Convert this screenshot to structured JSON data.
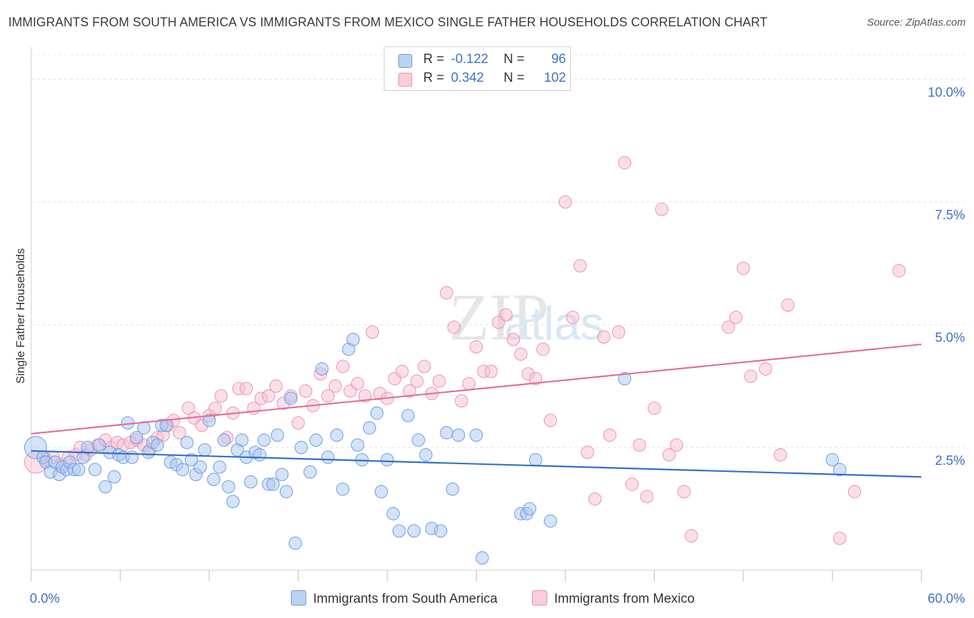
{
  "header": {
    "title": "IMMIGRANTS FROM SOUTH AMERICA VS IMMIGRANTS FROM MEXICO SINGLE FATHER HOUSEHOLDS CORRELATION CHART",
    "source": "Source: ZipAtlas.com"
  },
  "legend": {
    "r_label": "R =",
    "n_label": "N =",
    "rows": [
      {
        "r": "-0.122",
        "n": "96"
      },
      {
        "r": "0.342",
        "n": "102"
      }
    ]
  },
  "bottom_legend": [
    "Immigrants from South America",
    "Immigrants from Mexico"
  ],
  "colors": {
    "blue_fill": "#a9c8f0",
    "blue_stroke": "#6a9be0",
    "blue_line": "#2f6ec9",
    "pink_fill": "#f7c0d1",
    "pink_stroke": "#eb8fae",
    "pink_line": "#e46b96",
    "tick_label": "#3b72c4"
  },
  "chart_data": {
    "type": "scatter",
    "title": "IMMIGRANTS FROM SOUTH AMERICA VS IMMIGRANTS FROM MEXICO SINGLE FATHER HOUSEHOLDS CORRELATION CHART",
    "xlabel": "",
    "ylabel": "Single Father Households",
    "xlim": [
      0,
      60
    ],
    "ylim": [
      0,
      10.5
    ],
    "x_tick_labels": [
      "0.0%",
      "60.0%"
    ],
    "y_ticks": [
      2.5,
      5.0,
      7.5,
      10.0
    ],
    "y_tick_labels": [
      "2.5%",
      "5.0%",
      "7.5%",
      "10.0%"
    ],
    "watermark": "ZIPatlas",
    "series": [
      {
        "name": "Immigrants from South America",
        "color": "blue",
        "r": -0.122,
        "n": 96,
        "trend": [
          [
            0,
            2.43
          ],
          [
            60,
            1.9
          ]
        ],
        "points": [
          [
            0.3,
            2.5,
            16
          ],
          [
            0.8,
            2.3,
            9
          ],
          [
            1.0,
            2.2,
            9
          ],
          [
            1.3,
            2.0,
            9
          ],
          [
            1.6,
            2.2,
            9
          ],
          [
            1.9,
            1.95,
            9
          ],
          [
            2.1,
            2.1,
            9
          ],
          [
            2.4,
            2.05,
            9
          ],
          [
            2.6,
            2.2,
            9
          ],
          [
            2.9,
            2.05,
            9
          ],
          [
            3.2,
            2.05,
            9
          ],
          [
            3.5,
            2.3,
            9
          ],
          [
            3.8,
            2.5,
            9
          ],
          [
            4.3,
            2.05,
            9
          ],
          [
            4.6,
            2.55,
            9
          ],
          [
            5.0,
            1.7,
            9
          ],
          [
            5.3,
            2.4,
            9
          ],
          [
            5.6,
            1.9,
            9
          ],
          [
            5.9,
            2.35,
            9
          ],
          [
            6.2,
            2.3,
            9
          ],
          [
            6.5,
            3.0,
            9
          ],
          [
            6.8,
            2.3,
            9
          ],
          [
            7.1,
            2.7,
            9
          ],
          [
            7.6,
            2.9,
            9
          ],
          [
            7.9,
            2.4,
            9
          ],
          [
            8.2,
            2.6,
            9
          ],
          [
            8.5,
            2.55,
            9
          ],
          [
            8.8,
            2.95,
            9
          ],
          [
            9.1,
            2.95,
            9
          ],
          [
            9.4,
            2.2,
            9
          ],
          [
            9.8,
            2.15,
            9
          ],
          [
            10.2,
            2.05,
            9
          ],
          [
            10.5,
            2.6,
            9
          ],
          [
            10.8,
            2.25,
            9
          ],
          [
            11.1,
            1.95,
            9
          ],
          [
            11.4,
            2.1,
            9
          ],
          [
            11.7,
            2.45,
            9
          ],
          [
            12.0,
            3.05,
            9
          ],
          [
            12.3,
            1.85,
            9
          ],
          [
            12.7,
            2.1,
            9
          ],
          [
            13.0,
            2.65,
            9
          ],
          [
            13.3,
            1.7,
            9
          ],
          [
            13.6,
            1.4,
            9
          ],
          [
            13.9,
            2.45,
            9
          ],
          [
            14.2,
            2.65,
            9
          ],
          [
            14.5,
            2.3,
            9
          ],
          [
            14.8,
            1.8,
            9
          ],
          [
            15.1,
            2.4,
            9
          ],
          [
            15.4,
            2.35,
            9
          ],
          [
            15.7,
            2.65,
            9
          ],
          [
            16.0,
            1.75,
            9
          ],
          [
            16.3,
            1.75,
            9
          ],
          [
            16.6,
            2.75,
            9
          ],
          [
            16.9,
            1.95,
            9
          ],
          [
            17.2,
            1.6,
            9
          ],
          [
            17.5,
            3.5,
            9
          ],
          [
            17.8,
            0.55,
            9
          ],
          [
            18.2,
            2.5,
            9
          ],
          [
            18.8,
            2.0,
            9
          ],
          [
            19.2,
            2.65,
            9
          ],
          [
            19.6,
            4.1,
            9
          ],
          [
            20.0,
            2.3,
            9
          ],
          [
            20.6,
            2.75,
            9
          ],
          [
            21.0,
            1.65,
            9
          ],
          [
            21.4,
            4.5,
            9
          ],
          [
            21.7,
            4.7,
            9
          ],
          [
            22.0,
            2.55,
            9
          ],
          [
            22.3,
            2.25,
            9
          ],
          [
            22.8,
            2.9,
            9
          ],
          [
            23.3,
            3.2,
            9
          ],
          [
            23.6,
            1.6,
            9
          ],
          [
            24.0,
            2.25,
            9
          ],
          [
            24.4,
            1.15,
            9
          ],
          [
            24.8,
            0.8,
            9
          ],
          [
            25.4,
            3.15,
            9
          ],
          [
            25.8,
            0.8,
            9
          ],
          [
            26.1,
            2.65,
            9
          ],
          [
            26.6,
            2.35,
            9
          ],
          [
            27.0,
            0.85,
            9
          ],
          [
            27.6,
            0.8,
            9
          ],
          [
            28.0,
            2.8,
            9
          ],
          [
            28.4,
            1.65,
            9
          ],
          [
            28.8,
            2.75,
            9
          ],
          [
            30.0,
            2.75,
            9
          ],
          [
            30.4,
            0.25,
            9
          ],
          [
            33.0,
            1.15,
            9
          ],
          [
            33.4,
            1.15,
            9
          ],
          [
            33.6,
            1.25,
            9
          ],
          [
            34.0,
            2.25,
            9
          ],
          [
            35.0,
            1.0,
            9
          ],
          [
            40.0,
            3.9,
            9
          ],
          [
            54.0,
            2.25,
            9
          ],
          [
            54.5,
            2.05,
            9
          ]
        ]
      },
      {
        "name": "Immigrants from Mexico",
        "color": "pink",
        "r": 0.342,
        "n": 102,
        "trend": [
          [
            0,
            2.78
          ],
          [
            60,
            4.6
          ]
        ],
        "points": [
          [
            0.3,
            2.2,
            16
          ],
          [
            1.0,
            2.25,
            9
          ],
          [
            1.5,
            2.3,
            9
          ],
          [
            2.0,
            2.15,
            9
          ],
          [
            2.5,
            2.3,
            9
          ],
          [
            3.0,
            2.35,
            9
          ],
          [
            3.3,
            2.5,
            9
          ],
          [
            3.7,
            2.35,
            9
          ],
          [
            4.0,
            2.45,
            9
          ],
          [
            4.5,
            2.55,
            9
          ],
          [
            5.0,
            2.65,
            9
          ],
          [
            5.4,
            2.5,
            9
          ],
          [
            5.8,
            2.6,
            9
          ],
          [
            6.2,
            2.55,
            9
          ],
          [
            6.7,
            2.6,
            9
          ],
          [
            7.1,
            2.65,
            9
          ],
          [
            7.6,
            2.55,
            9
          ],
          [
            8.0,
            2.45,
            9
          ],
          [
            8.5,
            2.7,
            9
          ],
          [
            8.9,
            2.75,
            9
          ],
          [
            9.2,
            2.95,
            9
          ],
          [
            9.6,
            3.05,
            9
          ],
          [
            10.0,
            2.8,
            9
          ],
          [
            10.6,
            3.3,
            9
          ],
          [
            11.0,
            3.1,
            9
          ],
          [
            11.5,
            2.95,
            9
          ],
          [
            12.0,
            3.15,
            9
          ],
          [
            12.4,
            3.3,
            9
          ],
          [
            12.8,
            3.55,
            9
          ],
          [
            13.2,
            2.7,
            9
          ],
          [
            13.6,
            3.2,
            9
          ],
          [
            14.0,
            3.7,
            9
          ],
          [
            14.5,
            3.7,
            9
          ],
          [
            15.0,
            3.3,
            9
          ],
          [
            15.5,
            3.5,
            9
          ],
          [
            16.0,
            3.55,
            9
          ],
          [
            16.5,
            3.75,
            9
          ],
          [
            17.0,
            3.4,
            9
          ],
          [
            17.5,
            3.55,
            9
          ],
          [
            18.0,
            3.0,
            9
          ],
          [
            18.5,
            3.65,
            9
          ],
          [
            19.0,
            3.35,
            9
          ],
          [
            19.5,
            4.0,
            9
          ],
          [
            20.0,
            3.55,
            9
          ],
          [
            20.5,
            3.75,
            9
          ],
          [
            21.0,
            4.15,
            9
          ],
          [
            21.5,
            3.65,
            9
          ],
          [
            22.0,
            3.8,
            9
          ],
          [
            22.5,
            3.55,
            9
          ],
          [
            23.0,
            4.85,
            9
          ],
          [
            23.5,
            3.6,
            9
          ],
          [
            24.0,
            3.5,
            9
          ],
          [
            24.5,
            3.9,
            9
          ],
          [
            25.0,
            4.05,
            9
          ],
          [
            25.5,
            3.65,
            9
          ],
          [
            26.0,
            3.85,
            9
          ],
          [
            26.5,
            4.15,
            9
          ],
          [
            27.0,
            3.6,
            9
          ],
          [
            27.5,
            3.85,
            9
          ],
          [
            28.0,
            5.65,
            9
          ],
          [
            28.5,
            4.95,
            9
          ],
          [
            29.0,
            3.45,
            9
          ],
          [
            29.5,
            3.8,
            9
          ],
          [
            30.0,
            4.55,
            9
          ],
          [
            30.5,
            4.05,
            9
          ],
          [
            31.0,
            4.05,
            9
          ],
          [
            31.5,
            5.05,
            9
          ],
          [
            32.0,
            5.2,
            9
          ],
          [
            32.5,
            4.7,
            9
          ],
          [
            33.0,
            4.4,
            9
          ],
          [
            33.5,
            4.0,
            9
          ],
          [
            34.0,
            3.9,
            9
          ],
          [
            34.5,
            4.5,
            9
          ],
          [
            35.0,
            3.05,
            9
          ],
          [
            36.0,
            7.5,
            9
          ],
          [
            36.5,
            5.15,
            9
          ],
          [
            37.0,
            6.2,
            9
          ],
          [
            37.5,
            2.4,
            9
          ],
          [
            38.0,
            1.45,
            9
          ],
          [
            38.6,
            4.75,
            9
          ],
          [
            39.0,
            2.75,
            9
          ],
          [
            39.6,
            4.85,
            9
          ],
          [
            40.0,
            8.3,
            9
          ],
          [
            40.5,
            1.75,
            9
          ],
          [
            41.0,
            2.55,
            9
          ],
          [
            41.5,
            1.5,
            9
          ],
          [
            42.0,
            3.3,
            9
          ],
          [
            42.5,
            7.35,
            9
          ],
          [
            43.0,
            2.35,
            9
          ],
          [
            43.5,
            2.55,
            9
          ],
          [
            44.0,
            1.6,
            9
          ],
          [
            44.5,
            0.7,
            9
          ],
          [
            47.0,
            4.95,
            9
          ],
          [
            47.5,
            5.15,
            9
          ],
          [
            48.0,
            6.15,
            9
          ],
          [
            48.5,
            3.95,
            9
          ],
          [
            49.5,
            4.1,
            9
          ],
          [
            50.5,
            2.35,
            9
          ],
          [
            51.0,
            5.4,
            9
          ],
          [
            54.5,
            0.65,
            9
          ],
          [
            55.5,
            1.6,
            9
          ],
          [
            58.5,
            6.1,
            9
          ]
        ]
      }
    ]
  }
}
